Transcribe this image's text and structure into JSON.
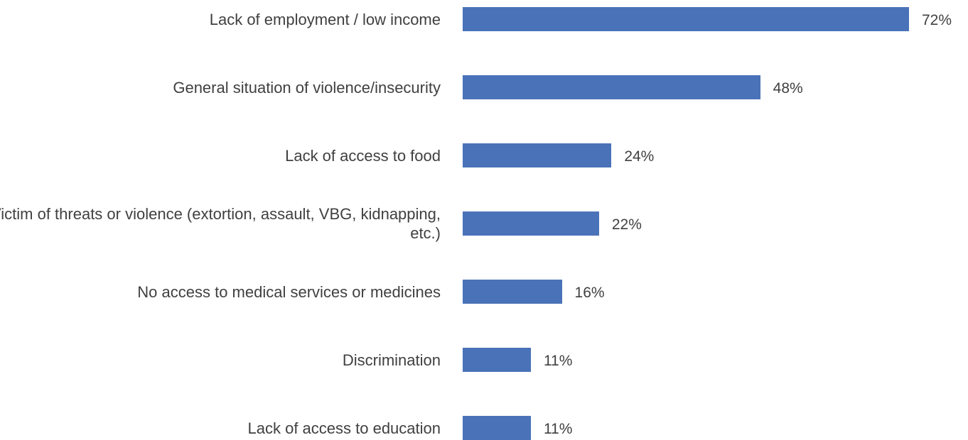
{
  "chart_data": {
    "type": "bar",
    "orientation": "horizontal",
    "categories": [
      "Lack of employment / low income",
      "General situation of violence/insecurity",
      "Lack of access to food",
      "Victim of threats or violence (extortion, assault, VBG, kidnapping, etc.)",
      "No access to medical services or medicines",
      "Discrimination",
      "Lack of access to education"
    ],
    "values": [
      72,
      48,
      24,
      22,
      16,
      11,
      11
    ],
    "value_labels": [
      "72%",
      "48%",
      "24%",
      "22%",
      "16%",
      "11%",
      "11%"
    ],
    "xlim": [
      0,
      72
    ],
    "bar_color": "#4a72b8",
    "grid": false,
    "legend": "none"
  }
}
